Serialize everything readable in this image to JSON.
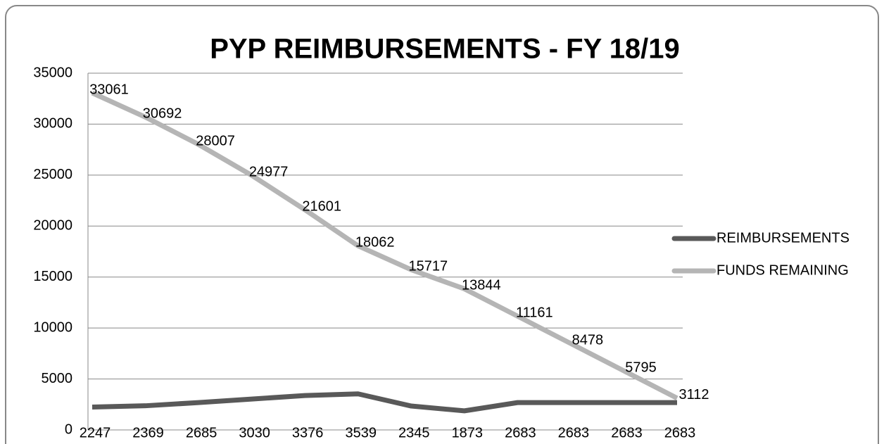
{
  "chart_data": {
    "type": "line",
    "title": "PYP REIMBURSEMENTS - FY 18/19",
    "categories": [
      null,
      null,
      null,
      null,
      null,
      null,
      null,
      null,
      null,
      null,
      null,
      null
    ],
    "series": [
      {
        "name": "REIMBURSEMENTS",
        "color": "#595959",
        "values": [
          2247,
          2369,
          2685,
          3030,
          3376,
          3539,
          2345,
          1873,
          2683,
          2683,
          2683,
          2683
        ]
      },
      {
        "name": "FUNDS REMAINING",
        "color": "#b5b5b5",
        "values": [
          33061,
          30692,
          28007,
          24977,
          21601,
          18062,
          15717,
          13844,
          11161,
          8478,
          5795,
          3112
        ]
      }
    ],
    "ylim": [
      0,
      35000
    ],
    "yticks": [
      0,
      5000,
      10000,
      15000,
      20000,
      25000,
      30000,
      35000
    ],
    "grid": true,
    "legend": "right"
  }
}
